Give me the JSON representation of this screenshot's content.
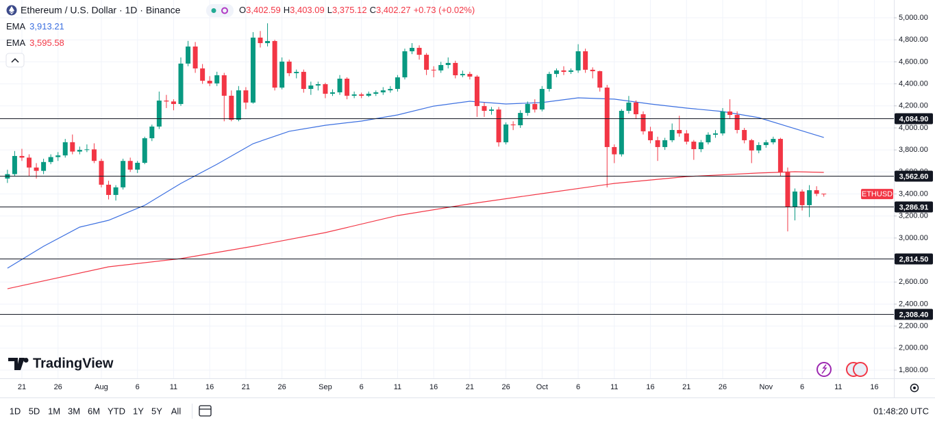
{
  "chart_data": {
    "type": "candlestick",
    "title": "Ethereum / U.S. Dollar · 1D · Binance",
    "header_values": [
      {
        "key": "O",
        "value": "3,402.59"
      },
      {
        "key": "H",
        "value": "3,403.09"
      },
      {
        "key": "L",
        "value": "3,375.12"
      },
      {
        "key": "C",
        "value": "3,402.27"
      }
    ],
    "change": "+0.73 (+0.02%)",
    "up_color": "#089981",
    "down_color": "#f23645",
    "xlim": [
      -1.03,
      122.7
    ],
    "ylim": [
      1725.5,
      5161.6
    ],
    "grid": true,
    "xticks": [
      {
        "value": 2,
        "label": "21"
      },
      {
        "value": 7,
        "label": "26"
      },
      {
        "value": 13,
        "label": "Aug"
      },
      {
        "value": 18,
        "label": "6"
      },
      {
        "value": 23,
        "label": "11"
      },
      {
        "value": 28,
        "label": "16"
      },
      {
        "value": 33,
        "label": "21"
      },
      {
        "value": 38,
        "label": "26"
      },
      {
        "value": 44,
        "label": "Sep"
      },
      {
        "value": 49,
        "label": "6"
      },
      {
        "value": 54,
        "label": "11"
      },
      {
        "value": 59,
        "label": "16"
      },
      {
        "value": 64,
        "label": "21"
      },
      {
        "value": 69,
        "label": "26"
      },
      {
        "value": 74,
        "label": "Oct"
      },
      {
        "value": 79,
        "label": "6"
      },
      {
        "value": 84,
        "label": "11"
      },
      {
        "value": 89,
        "label": "16"
      },
      {
        "value": 94,
        "label": "21"
      },
      {
        "value": 99,
        "label": "26"
      },
      {
        "value": 105,
        "label": "Nov"
      },
      {
        "value": 110,
        "label": "6"
      },
      {
        "value": 115,
        "label": "11"
      },
      {
        "value": 120,
        "label": "16"
      }
    ],
    "yticks": [
      {
        "value": 1800,
        "label": "1,800.00"
      },
      {
        "value": 2000,
        "label": "2,000.00"
      },
      {
        "value": 2200,
        "label": "2,200.00"
      },
      {
        "value": 2400,
        "label": "2,400.00"
      },
      {
        "value": 2600,
        "label": "2,600.00"
      },
      {
        "value": 2800,
        "label": "2,800.00"
      },
      {
        "value": 3000,
        "label": "3,000.00"
      },
      {
        "value": 3200,
        "label": "3,200.00"
      },
      {
        "value": 3400,
        "label": "3,400.00"
      },
      {
        "value": 3600,
        "label": "3,600.00"
      },
      {
        "value": 3800,
        "label": "3,800.00"
      },
      {
        "value": 4000,
        "label": "4,000.00"
      },
      {
        "value": 4200,
        "label": "4,200.00"
      },
      {
        "value": 4400,
        "label": "4,400.00"
      },
      {
        "value": 4600,
        "label": "4,600.00"
      },
      {
        "value": 4800,
        "label": "4,800.00"
      },
      {
        "value": 5000,
        "label": "5,000.00"
      }
    ],
    "x": [
      0,
      1,
      2,
      3,
      4,
      5,
      6,
      7,
      8,
      9,
      10,
      11,
      12,
      13,
      14,
      15,
      16,
      17,
      18,
      19,
      20,
      21,
      22,
      23,
      24,
      25,
      26,
      27,
      28,
      29,
      30,
      31,
      32,
      33,
      34,
      35,
      36,
      37,
      38,
      39,
      40,
      41,
      42,
      43,
      44,
      45,
      46,
      47,
      48,
      49,
      50,
      51,
      52,
      53,
      54,
      55,
      56,
      57,
      58,
      59,
      60,
      61,
      62,
      63,
      64,
      65,
      66,
      67,
      68,
      69,
      70,
      71,
      72,
      73,
      74,
      75,
      76,
      77,
      78,
      79,
      80,
      81,
      82,
      83,
      84,
      85,
      86,
      87,
      88,
      89,
      90,
      91,
      92,
      93,
      94,
      95,
      96,
      97,
      98,
      99,
      100,
      101,
      102,
      103,
      104,
      105,
      106,
      107,
      108,
      109,
      110,
      111,
      112,
      113
    ],
    "ohlc": [
      [
        3540,
        3620,
        3500,
        3580
      ],
      [
        3580,
        3790,
        3560,
        3745
      ],
      [
        3745,
        3810,
        3700,
        3730
      ],
      [
        3730,
        3760,
        3560,
        3640
      ],
      [
        3640,
        3680,
        3540,
        3610
      ],
      [
        3610,
        3720,
        3580,
        3690
      ],
      [
        3690,
        3760,
        3670,
        3735
      ],
      [
        3735,
        3780,
        3700,
        3750
      ],
      [
        3750,
        3900,
        3730,
        3870
      ],
      [
        3870,
        3940,
        3760,
        3785
      ],
      [
        3785,
        3830,
        3760,
        3800
      ],
      [
        3800,
        3850,
        3780,
        3805
      ],
      [
        3805,
        3860,
        3680,
        3700
      ],
      [
        3700,
        3720,
        3460,
        3484
      ],
      [
        3484,
        3520,
        3350,
        3391
      ],
      [
        3391,
        3480,
        3340,
        3460
      ],
      [
        3460,
        3720,
        3440,
        3700
      ],
      [
        3700,
        3730,
        3600,
        3621
      ],
      [
        3621,
        3700,
        3590,
        3683
      ],
      [
        3683,
        3920,
        3670,
        3906
      ],
      [
        3906,
        4030,
        3880,
        4012
      ],
      [
        4012,
        4330,
        3990,
        4248
      ],
      [
        4248,
        4300,
        4180,
        4240
      ],
      [
        4240,
        4260,
        4160,
        4217
      ],
      [
        4217,
        4640,
        4200,
        4584
      ],
      [
        4584,
        4790,
        4560,
        4739
      ],
      [
        4739,
        4780,
        4500,
        4540
      ],
      [
        4540,
        4580,
        4400,
        4428
      ],
      [
        4428,
        4470,
        4380,
        4404
      ],
      [
        4404,
        4510,
        4380,
        4478
      ],
      [
        4478,
        4500,
        4060,
        4292
      ],
      [
        4292,
        4340,
        4060,
        4074
      ],
      [
        4074,
        4380,
        4060,
        4341
      ],
      [
        4341,
        4370,
        4170,
        4230
      ],
      [
        4230,
        4870,
        4220,
        4820
      ],
      [
        4820,
        4880,
        4730,
        4770
      ],
      [
        4770,
        4950,
        4740,
        4789
      ],
      [
        4789,
        4800,
        4340,
        4366
      ],
      [
        4366,
        4640,
        4350,
        4602
      ],
      [
        4602,
        4620,
        4470,
        4497
      ],
      [
        4497,
        4530,
        4450,
        4509
      ],
      [
        4509,
        4530,
        4320,
        4354
      ],
      [
        4354,
        4420,
        4300,
        4385
      ],
      [
        4385,
        4420,
        4340,
        4397
      ],
      [
        4397,
        4410,
        4270,
        4310
      ],
      [
        4310,
        4350,
        4290,
        4323
      ],
      [
        4323,
        4480,
        4300,
        4447
      ],
      [
        4447,
        4460,
        4260,
        4292
      ],
      [
        4292,
        4330,
        4270,
        4304
      ],
      [
        4304,
        4320,
        4270,
        4292
      ],
      [
        4292,
        4330,
        4280,
        4310
      ],
      [
        4310,
        4340,
        4290,
        4323
      ],
      [
        4323,
        4370,
        4300,
        4341
      ],
      [
        4341,
        4380,
        4320,
        4354
      ],
      [
        4354,
        4480,
        4330,
        4459
      ],
      [
        4459,
        4720,
        4440,
        4696
      ],
      [
        4696,
        4770,
        4670,
        4727
      ],
      [
        4727,
        4750,
        4620,
        4664
      ],
      [
        4664,
        4680,
        4480,
        4528
      ],
      [
        4528,
        4560,
        4460,
        4522
      ],
      [
        4522,
        4600,
        4500,
        4571
      ],
      [
        4571,
        4640,
        4540,
        4590
      ],
      [
        4590,
        4610,
        4450,
        4478
      ],
      [
        4478,
        4520,
        4460,
        4490
      ],
      [
        4490,
        4510,
        4440,
        4466
      ],
      [
        4466,
        4480,
        4100,
        4198
      ],
      [
        4198,
        4230,
        4100,
        4155
      ],
      [
        4155,
        4190,
        4120,
        4167
      ],
      [
        4167,
        4190,
        3830,
        3869
      ],
      [
        3869,
        4050,
        3850,
        4031
      ],
      [
        4031,
        4060,
        3980,
        4024
      ],
      [
        4024,
        4160,
        4000,
        4136
      ],
      [
        4136,
        4240,
        4110,
        4217
      ],
      [
        4217,
        4260,
        4140,
        4167
      ],
      [
        4167,
        4380,
        4150,
        4354
      ],
      [
        4354,
        4510,
        4330,
        4490
      ],
      [
        4490,
        4540,
        4460,
        4522
      ],
      [
        4522,
        4560,
        4480,
        4509
      ],
      [
        4509,
        4540,
        4490,
        4522
      ],
      [
        4522,
        4760,
        4500,
        4696
      ],
      [
        4696,
        4720,
        4500,
        4528
      ],
      [
        4528,
        4550,
        4450,
        4515
      ],
      [
        4515,
        4520,
        4330,
        4366
      ],
      [
        4366,
        4390,
        3460,
        3826
      ],
      [
        3826,
        3850,
        3680,
        3760
      ],
      [
        3760,
        4170,
        3740,
        4155
      ],
      [
        4155,
        4290,
        4130,
        4230
      ],
      [
        4230,
        4250,
        4080,
        4124
      ],
      [
        4124,
        4150,
        3940,
        3969
      ],
      [
        3969,
        4010,
        3860,
        3888
      ],
      [
        3888,
        3920,
        3700,
        3826
      ],
      [
        3826,
        3910,
        3800,
        3888
      ],
      [
        3888,
        4040,
        3870,
        3981
      ],
      [
        3981,
        4110,
        3920,
        3950
      ],
      [
        3950,
        3980,
        3850,
        3875
      ],
      [
        3875,
        3890,
        3710,
        3807
      ],
      [
        3807,
        3890,
        3780,
        3869
      ],
      [
        3869,
        3960,
        3850,
        3938
      ],
      [
        3938,
        3980,
        3910,
        3950
      ],
      [
        3950,
        4180,
        3930,
        4149
      ],
      [
        4149,
        4260,
        4080,
        4118
      ],
      [
        4118,
        4150,
        3950,
        3981
      ],
      [
        3981,
        4000,
        3860,
        3888
      ],
      [
        3888,
        3900,
        3680,
        3795
      ],
      [
        3795,
        3870,
        3770,
        3844
      ],
      [
        3844,
        3890,
        3820,
        3869
      ],
      [
        3869,
        3920,
        3850,
        3900
      ],
      [
        3900,
        3910,
        3560,
        3596
      ],
      [
        3596,
        3640,
        3060,
        3279
      ],
      [
        3279,
        3450,
        3160,
        3422
      ],
      [
        3422,
        3440,
        3250,
        3298
      ],
      [
        3298,
        3480,
        3190,
        3434
      ],
      [
        3434,
        3470,
        3380,
        3401.54
      ],
      [
        3402.59,
        3403.09,
        3375.12,
        3402.27
      ]
    ],
    "series": [
      {
        "name": "EMA",
        "value_label": "3,913.21",
        "color": "#3b6fe0",
        "x": [
          0,
          5,
          10,
          14,
          19,
          24,
          29,
          34,
          39,
          44,
          49,
          54,
          59,
          64,
          69,
          74,
          79,
          84,
          89,
          94,
          99,
          104,
          109,
          113
        ],
        "values": [
          2726,
          2925,
          3099,
          3161,
          3297,
          3496,
          3670,
          3857,
          3969,
          4024,
          4062,
          4118,
          4198,
          4242,
          4217,
          4230,
          4273,
          4261,
          4217,
          4180,
          4149,
          4093,
          3993,
          3913.21
        ]
      },
      {
        "name": "EMA",
        "value_label": "3,595.58",
        "color": "#f23645",
        "x": [
          0,
          14,
          24,
          34,
          44,
          54,
          64,
          74,
          84,
          94,
          104,
          109,
          113
        ],
        "values": [
          2539,
          2738,
          2813,
          2925,
          3049,
          3204,
          3310,
          3403,
          3496,
          3558,
          3590,
          3602,
          3595.58
        ]
      }
    ],
    "levels": [
      {
        "value": 4084.9,
        "label": "4,084.90"
      },
      {
        "value": 3562.6,
        "label": "3,562.60"
      },
      {
        "value": 3286.91,
        "label": "3,286.91"
      },
      {
        "value": 2814.5,
        "label": "2,814.50"
      },
      {
        "value": 2308.4,
        "label": "2,308.40"
      }
    ],
    "symbol_tag": "ETHUSD",
    "brand": "TradingView",
    "ranges": [
      "1D",
      "5D",
      "1M",
      "3M",
      "6M",
      "YTD",
      "1Y",
      "5Y",
      "All"
    ],
    "clock": "01:48:20 UTC"
  }
}
